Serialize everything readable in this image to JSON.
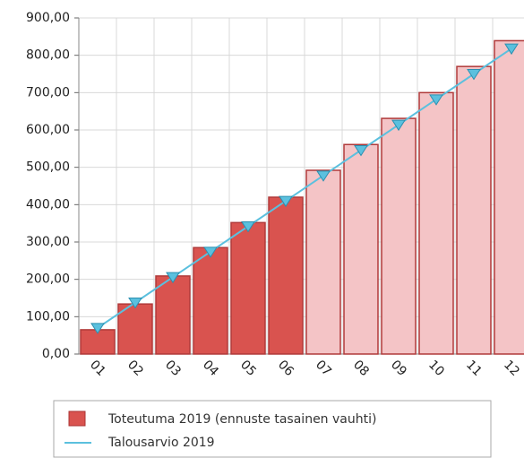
{
  "chart_data": {
    "type": "bar",
    "categories": [
      "01",
      "02",
      "03",
      "04",
      "05",
      "06",
      "07",
      "08",
      "09",
      "10",
      "11",
      "12"
    ],
    "series": [
      {
        "name": "Toteutuma 2019 (ennuste tasainen vauhti)",
        "type": "bar",
        "color": "#d9534f",
        "colors": [
          "#d9534f",
          "#d9534f",
          "#d9534f",
          "#d9534f",
          "#d9534f",
          "#d9534f",
          "#f4c4c6",
          "#f4c4c6",
          "#f4c4c6",
          "#f4c4c6",
          "#f4c4c6",
          "#f4c4c6"
        ],
        "values": [
          65,
          134,
          209,
          285,
          352,
          420,
          492,
          561,
          631,
          700,
          770,
          839
        ]
      },
      {
        "name": "Talousarvio 2019",
        "type": "line",
        "color": "#5bc0de",
        "values": [
          70,
          138,
          206,
          274,
          342,
          410,
          478,
          546,
          614,
          682,
          750,
          818
        ]
      }
    ],
    "ylim": [
      0,
      900
    ],
    "yticks": [
      {
        "value": 0,
        "label": "0,00"
      },
      {
        "value": 100,
        "label": "100,00"
      },
      {
        "value": 200,
        "label": "200,00"
      },
      {
        "value": 300,
        "label": "300,00"
      },
      {
        "value": 400,
        "label": "400,00"
      },
      {
        "value": 500,
        "label": "500,00"
      },
      {
        "value": 600,
        "label": "600,00"
      },
      {
        "value": 700,
        "label": "700,00"
      },
      {
        "value": 800,
        "label": "800,00"
      },
      {
        "value": 900,
        "label": "900,00"
      }
    ],
    "grid": true
  }
}
